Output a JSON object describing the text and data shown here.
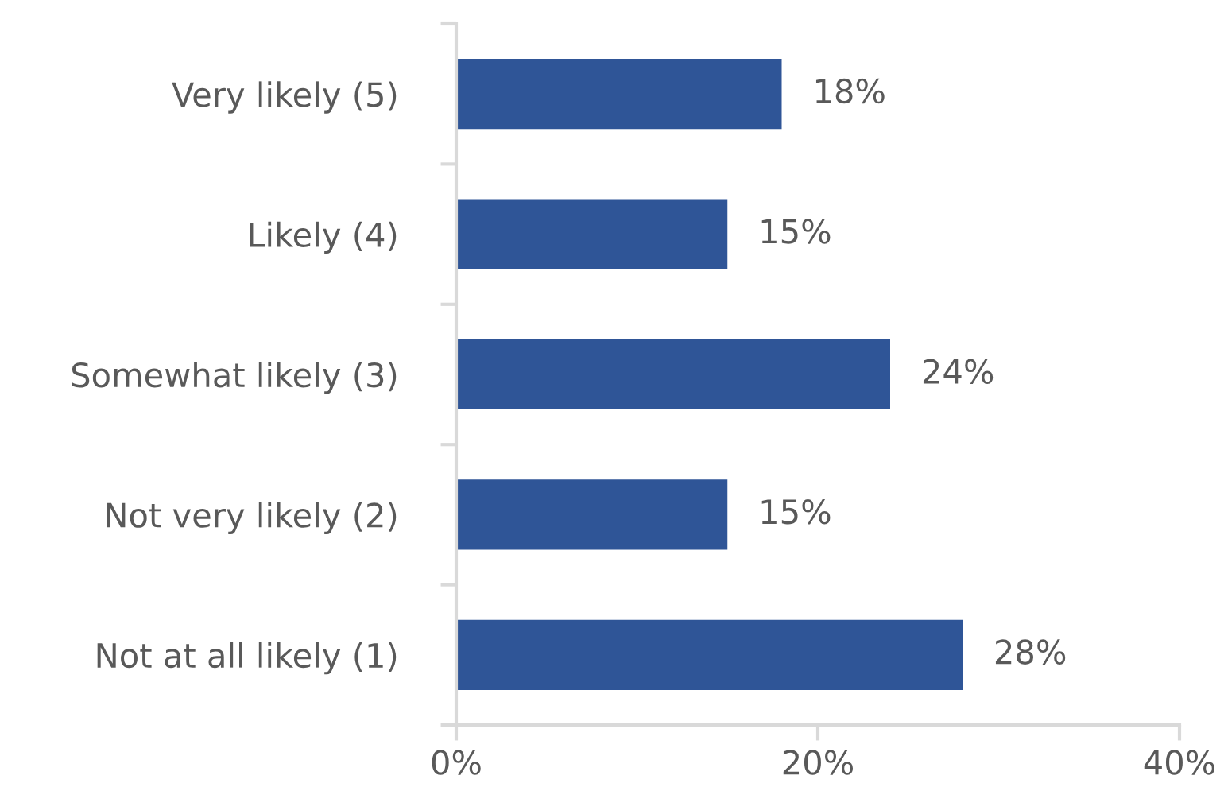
{
  "chart_data": {
    "type": "bar",
    "orientation": "horizontal",
    "categories": [
      "Very likely (5)",
      "Likely (4)",
      "Somewhat likely (3)",
      "Not very likely (2)",
      "Not at all likely (1)"
    ],
    "values": [
      18,
      15,
      24,
      15,
      28
    ],
    "color": "#2f5597",
    "value_labels": [
      "18%",
      "15%",
      "24%",
      "15%",
      "28%"
    ],
    "xlim": [
      0,
      40
    ],
    "xticks": [
      {
        "value": 0,
        "label": "0%"
      },
      {
        "value": 20,
        "label": "20%"
      },
      {
        "value": 40,
        "label": "40%"
      }
    ]
  }
}
